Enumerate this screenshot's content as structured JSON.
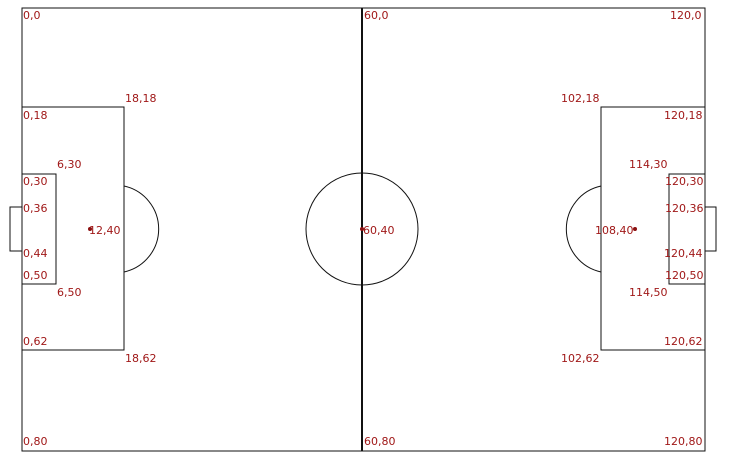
{
  "colors": {
    "label": "#a01818",
    "lines": "#111111",
    "spot": "#8b1010"
  },
  "pitch": {
    "length": 120,
    "width": 80
  },
  "labels": {
    "tl": "0,0",
    "tm": "60,0",
    "tr": "120,0",
    "l18": "0,18",
    "lbox18": "18,18",
    "rbox18": "102,18",
    "r18": "120,18",
    "l30": "0,30",
    "lsix30": "6,30",
    "rsix30": "114,30",
    "r30": "120,30",
    "l36": "0,36",
    "r36": "120,36",
    "lpen": "12,40",
    "center": "60,40",
    "rpen": "108,40",
    "l44": "0,44",
    "r44": "120,44",
    "l50": "0,50",
    "lsix50": "6,50",
    "rsix50": "114,50",
    "r50": "120,50",
    "l62": "0,62",
    "lbox62": "18,62",
    "rbox62": "102,62",
    "r62": "120,62",
    "bl": "0,80",
    "bm": "60,80",
    "br": "120,80"
  }
}
